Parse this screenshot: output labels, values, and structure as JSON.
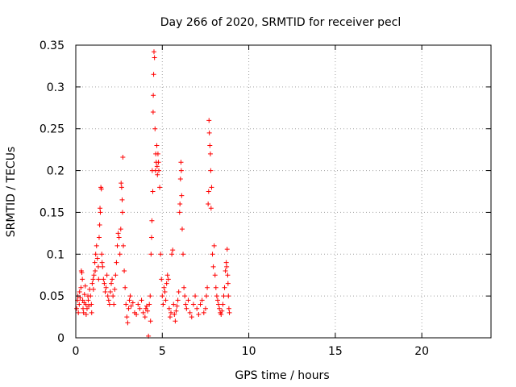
{
  "chart_data": {
    "type": "scatter",
    "title": "Day 266 of 2020, SRMTID for receiver pecl",
    "xlabel": "GPS time / hours",
    "ylabel": "SRMTID / TECUs",
    "xlim": [
      0,
      24
    ],
    "ylim": [
      0,
      0.35
    ],
    "xticks": [
      "0",
      "5",
      "10",
      "15",
      "20"
    ],
    "yticks": [
      "0",
      "0.05",
      "0.1",
      "0.15",
      "0.2",
      "0.25",
      "0.3",
      "0.35"
    ],
    "grid": true,
    "marker": "+",
    "color": "#ff0000",
    "series": [
      {
        "name": "SRMTID",
        "points": [
          [
            0.05,
            0.035
          ],
          [
            0.1,
            0.045
          ],
          [
            0.12,
            0.05
          ],
          [
            0.15,
            0.03
          ],
          [
            0.2,
            0.04
          ],
          [
            0.22,
            0.055
          ],
          [
            0.25,
            0.048
          ],
          [
            0.3,
            0.06
          ],
          [
            0.32,
            0.08
          ],
          [
            0.35,
            0.078
          ],
          [
            0.38,
            0.07
          ],
          [
            0.4,
            0.045
          ],
          [
            0.42,
            0.035
          ],
          [
            0.45,
            0.03
          ],
          [
            0.48,
            0.042
          ],
          [
            0.5,
            0.052
          ],
          [
            0.55,
            0.062
          ],
          [
            0.58,
            0.04
          ],
          [
            0.6,
            0.028
          ],
          [
            0.65,
            0.035
          ],
          [
            0.7,
            0.05
          ],
          [
            0.72,
            0.045
          ],
          [
            0.75,
            0.038
          ],
          [
            0.8,
            0.058
          ],
          [
            0.85,
            0.05
          ],
          [
            0.9,
            0.04
          ],
          [
            0.92,
            0.03
          ],
          [
            0.95,
            0.065
          ],
          [
            1.0,
            0.07
          ],
          [
            1.02,
            0.058
          ],
          [
            1.05,
            0.075
          ],
          [
            1.1,
            0.09
          ],
          [
            1.12,
            0.08
          ],
          [
            1.15,
            0.1
          ],
          [
            1.2,
            0.11
          ],
          [
            1.25,
            0.095
          ],
          [
            1.3,
            0.085
          ],
          [
            1.32,
            0.07
          ],
          [
            1.35,
            0.12
          ],
          [
            1.38,
            0.135
          ],
          [
            1.4,
            0.155
          ],
          [
            1.42,
            0.15
          ],
          [
            1.45,
            0.18
          ],
          [
            1.48,
            0.178
          ],
          [
            1.5,
            0.1
          ],
          [
            1.52,
            0.09
          ],
          [
            1.55,
            0.085
          ],
          [
            1.6,
            0.07
          ],
          [
            1.65,
            0.065
          ],
          [
            1.7,
            0.055
          ],
          [
            1.75,
            0.06
          ],
          [
            1.8,
            0.075
          ],
          [
            1.85,
            0.05
          ],
          [
            1.9,
            0.045
          ],
          [
            1.95,
            0.04
          ],
          [
            2.0,
            0.055
          ],
          [
            2.05,
            0.065
          ],
          [
            2.1,
            0.07
          ],
          [
            2.15,
            0.05
          ],
          [
            2.2,
            0.04
          ],
          [
            2.25,
            0.058
          ],
          [
            2.3,
            0.075
          ],
          [
            2.35,
            0.09
          ],
          [
            2.4,
            0.11
          ],
          [
            2.45,
            0.125
          ],
          [
            2.5,
            0.12
          ],
          [
            2.55,
            0.1
          ],
          [
            2.6,
            0.13
          ],
          [
            2.62,
            0.185
          ],
          [
            2.65,
            0.18
          ],
          [
            2.68,
            0.165
          ],
          [
            2.7,
            0.15
          ],
          [
            2.72,
            0.216
          ],
          [
            2.75,
            0.11
          ],
          [
            2.8,
            0.08
          ],
          [
            2.85,
            0.06
          ],
          [
            2.9,
            0.04
          ],
          [
            2.95,
            0.025
          ],
          [
            3.0,
            0.018
          ],
          [
            3.05,
            0.035
          ],
          [
            3.1,
            0.045
          ],
          [
            3.15,
            0.05
          ],
          [
            3.2,
            0.038
          ],
          [
            3.3,
            0.042
          ],
          [
            3.4,
            0.03
          ],
          [
            3.5,
            0.028
          ],
          [
            3.6,
            0.04
          ],
          [
            3.7,
            0.035
          ],
          [
            3.8,
            0.045
          ],
          [
            3.9,
            0.03
          ],
          [
            4.0,
            0.025
          ],
          [
            4.05,
            0.035
          ],
          [
            4.1,
            0.038
          ],
          [
            4.15,
            0.032
          ],
          [
            4.2,
            0.002
          ],
          [
            4.25,
            0.04
          ],
          [
            4.3,
            0.05
          ],
          [
            4.32,
            0.02
          ],
          [
            4.35,
            0.1
          ],
          [
            4.38,
            0.12
          ],
          [
            4.4,
            0.14
          ],
          [
            4.42,
            0.2
          ],
          [
            4.45,
            0.175
          ],
          [
            4.47,
            0.27
          ],
          [
            4.48,
            0.29
          ],
          [
            4.5,
            0.315
          ],
          [
            4.52,
            0.342
          ],
          [
            4.55,
            0.335
          ],
          [
            4.58,
            0.25
          ],
          [
            4.6,
            0.2
          ],
          [
            4.62,
            0.22
          ],
          [
            4.65,
            0.21
          ],
          [
            4.68,
            0.23
          ],
          [
            4.7,
            0.205
          ],
          [
            4.72,
            0.195
          ],
          [
            4.75,
            0.22
          ],
          [
            4.78,
            0.21
          ],
          [
            4.8,
            0.2
          ],
          [
            4.85,
            0.18
          ],
          [
            4.9,
            0.1
          ],
          [
            4.95,
            0.07
          ],
          [
            5.0,
            0.05
          ],
          [
            5.05,
            0.04
          ],
          [
            5.1,
            0.06
          ],
          [
            5.15,
            0.055
          ],
          [
            5.2,
            0.045
          ],
          [
            5.25,
            0.065
          ],
          [
            5.3,
            0.075
          ],
          [
            5.35,
            0.07
          ],
          [
            5.4,
            0.035
          ],
          [
            5.45,
            0.025
          ],
          [
            5.5,
            0.03
          ],
          [
            5.55,
            0.1
          ],
          [
            5.6,
            0.105
          ],
          [
            5.65,
            0.04
          ],
          [
            5.7,
            0.028
          ],
          [
            5.75,
            0.02
          ],
          [
            5.8,
            0.032
          ],
          [
            5.85,
            0.038
          ],
          [
            5.9,
            0.045
          ],
          [
            5.95,
            0.055
          ],
          [
            6.0,
            0.15
          ],
          [
            6.02,
            0.16
          ],
          [
            6.05,
            0.19
          ],
          [
            6.08,
            0.21
          ],
          [
            6.1,
            0.2
          ],
          [
            6.12,
            0.17
          ],
          [
            6.15,
            0.13
          ],
          [
            6.2,
            0.1
          ],
          [
            6.25,
            0.06
          ],
          [
            6.3,
            0.05
          ],
          [
            6.35,
            0.04
          ],
          [
            6.4,
            0.035
          ],
          [
            6.5,
            0.045
          ],
          [
            6.6,
            0.03
          ],
          [
            6.7,
            0.025
          ],
          [
            6.8,
            0.04
          ],
          [
            6.9,
            0.05
          ],
          [
            7.0,
            0.035
          ],
          [
            7.1,
            0.028
          ],
          [
            7.2,
            0.04
          ],
          [
            7.3,
            0.045
          ],
          [
            7.4,
            0.03
          ],
          [
            7.5,
            0.035
          ],
          [
            7.55,
            0.05
          ],
          [
            7.6,
            0.06
          ],
          [
            7.65,
            0.16
          ],
          [
            7.68,
            0.175
          ],
          [
            7.7,
            0.26
          ],
          [
            7.72,
            0.245
          ],
          [
            7.75,
            0.23
          ],
          [
            7.78,
            0.22
          ],
          [
            7.8,
            0.2
          ],
          [
            7.82,
            0.155
          ],
          [
            7.85,
            0.18
          ],
          [
            7.9,
            0.1
          ],
          [
            7.95,
            0.085
          ],
          [
            8.0,
            0.11
          ],
          [
            8.05,
            0.075
          ],
          [
            8.1,
            0.06
          ],
          [
            8.15,
            0.05
          ],
          [
            8.2,
            0.045
          ],
          [
            8.25,
            0.04
          ],
          [
            8.3,
            0.035
          ],
          [
            8.35,
            0.03
          ],
          [
            8.4,
            0.028
          ],
          [
            8.45,
            0.032
          ],
          [
            8.5,
            0.04
          ],
          [
            8.55,
            0.05
          ],
          [
            8.6,
            0.06
          ],
          [
            8.65,
            0.08
          ],
          [
            8.7,
            0.09
          ],
          [
            8.72,
            0.085
          ],
          [
            8.75,
            0.106
          ],
          [
            8.78,
            0.075
          ],
          [
            8.8,
            0.065
          ],
          [
            8.82,
            0.05
          ],
          [
            8.85,
            0.035
          ],
          [
            8.88,
            0.03
          ]
        ]
      }
    ]
  }
}
